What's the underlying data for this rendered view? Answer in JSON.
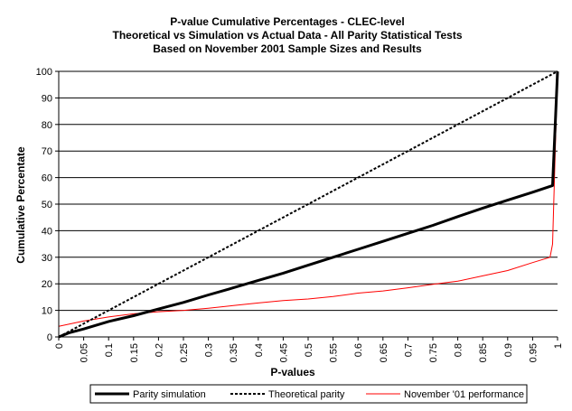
{
  "chart_data": {
    "type": "line",
    "title": [
      "P-value Cumulative Percentages - CLEC-level",
      "Theoretical vs Simulation vs Actual Data - All Parity Statistical Tests",
      "Based on November 2001 Sample Sizes and Results"
    ],
    "xlabel": "P-values",
    "ylabel": "Cumulative Percentate",
    "xlim": [
      0,
      1
    ],
    "ylim": [
      0,
      100
    ],
    "x_ticks": [
      "0",
      "0.05",
      "0.1",
      "0.15",
      "0.2",
      "0.25",
      "0.3",
      "0.35",
      "0.4",
      "0.45",
      "0.5",
      "0.55",
      "0.6",
      "0.65",
      "0.7",
      "0.75",
      "0.8",
      "0.85",
      "0.9",
      "0.95",
      "1"
    ],
    "y_ticks": [
      "0",
      "10",
      "20",
      "30",
      "40",
      "50",
      "60",
      "70",
      "80",
      "90",
      "100"
    ],
    "grid": "horizontal",
    "legend_position": "bottom",
    "series": [
      {
        "name": "Parity simulation",
        "color": "#000000",
        "style": "solid-thick",
        "points": [
          [
            0,
            0
          ],
          [
            0.02,
            1.5
          ],
          [
            0.05,
            3
          ],
          [
            0.1,
            5.8
          ],
          [
            0.15,
            8
          ],
          [
            0.2,
            10.5
          ],
          [
            0.25,
            13
          ],
          [
            0.3,
            15.8
          ],
          [
            0.35,
            18.5
          ],
          [
            0.4,
            21.3
          ],
          [
            0.45,
            24
          ],
          [
            0.5,
            27
          ],
          [
            0.55,
            30
          ],
          [
            0.6,
            33
          ],
          [
            0.65,
            36
          ],
          [
            0.7,
            39
          ],
          [
            0.75,
            42
          ],
          [
            0.8,
            45.3
          ],
          [
            0.85,
            48.5
          ],
          [
            0.9,
            51.5
          ],
          [
            0.95,
            54.5
          ],
          [
            0.99,
            57
          ],
          [
            1,
            100
          ]
        ]
      },
      {
        "name": "Theoretical parity",
        "color": "#000000",
        "style": "dotted",
        "points": [
          [
            0,
            0
          ],
          [
            1,
            100
          ]
        ]
      },
      {
        "name": "November '01 performance",
        "color": "#ff0000",
        "style": "solid-thin",
        "points": [
          [
            0,
            4
          ],
          [
            0.05,
            6
          ],
          [
            0.1,
            7.5
          ],
          [
            0.15,
            8.7
          ],
          [
            0.2,
            9.5
          ],
          [
            0.25,
            10
          ],
          [
            0.3,
            10.8
          ],
          [
            0.35,
            11.8
          ],
          [
            0.4,
            12.8
          ],
          [
            0.45,
            13.7
          ],
          [
            0.5,
            14.3
          ],
          [
            0.55,
            15.2
          ],
          [
            0.6,
            16.5
          ],
          [
            0.65,
            17.3
          ],
          [
            0.7,
            18.5
          ],
          [
            0.75,
            19.8
          ],
          [
            0.8,
            21
          ],
          [
            0.85,
            23
          ],
          [
            0.9,
            25
          ],
          [
            0.95,
            28
          ],
          [
            0.985,
            30
          ],
          [
            0.99,
            35
          ],
          [
            1,
            100
          ]
        ]
      }
    ]
  }
}
